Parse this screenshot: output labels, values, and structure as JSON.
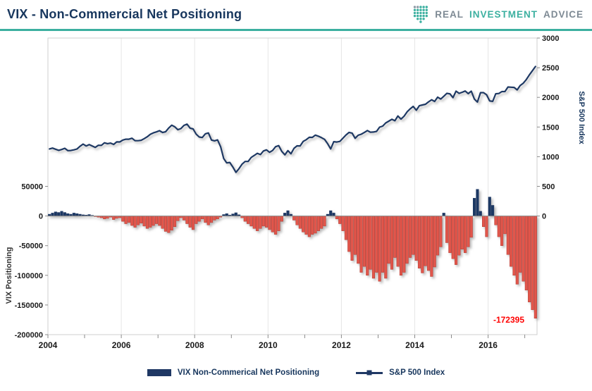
{
  "header": {
    "title": "VIX - Non-Commercial Net Positioning",
    "logo": {
      "icon": "dotted-shield-icon",
      "word1": "REAL",
      "word2": "INVESTMENT",
      "word3": "ADVICE"
    }
  },
  "colors": {
    "navy": "#1F3864",
    "teal": "#3CB0A0",
    "line": "#1F3864",
    "bar_negative": "#E2574C",
    "bar_negative_edge": "#B03A30",
    "bar_positive": "#1F3864",
    "annotation_red": "#FF0000",
    "axis_text": "#1a1a1a",
    "grid": "#E6E6E6",
    "plot_border": "#CFCFCF"
  },
  "annotation": {
    "label": "-172395",
    "value": -172395
  },
  "legend": [
    {
      "label": "VIX Non-Commerical Net Positioning",
      "swatch": "bar"
    },
    {
      "label": "S&P 500 Index",
      "swatch": "line"
    }
  ],
  "chart_data": {
    "type": "combo",
    "title": "VIX - Non-Commercial Net Positioning",
    "x_start": 2004,
    "x_months_per_point": 1,
    "x_ticks": [
      {
        "label": "2004",
        "value": 2004
      },
      {
        "label": "2006",
        "value": 2006
      },
      {
        "label": "2008",
        "value": 2008
      },
      {
        "label": "2010",
        "value": 2010
      },
      {
        "label": "2012",
        "value": 2012
      },
      {
        "label": "2014",
        "value": 2014
      },
      {
        "label": "2016",
        "value": 2016
      }
    ],
    "x_minor_tick_years": [
      2004,
      2005,
      2006,
      2007,
      2008,
      2009,
      2010,
      2011,
      2012,
      2013,
      2014,
      2015,
      2016,
      2017
    ],
    "left_axis": {
      "title": "VIX Positioning",
      "range": [
        -200000,
        300000
      ],
      "ticks": [
        {
          "label": "50000",
          "value": 50000
        },
        {
          "label": "0",
          "value": 0
        },
        {
          "label": "-50000",
          "value": -50000
        },
        {
          "label": "-100000",
          "value": -100000
        },
        {
          "label": "-150000",
          "value": -150000
        },
        {
          "label": "-200000",
          "value": -200000
        }
      ]
    },
    "right_axis": {
      "title": "S&P 500 Index",
      "range": [
        -2000,
        3000
      ],
      "left_units_per_right_unit": 100,
      "ticks": [
        {
          "label": "3000",
          "value": 3000
        },
        {
          "label": "2500",
          "value": 2500
        },
        {
          "label": "2000",
          "value": 2000
        },
        {
          "label": "1500",
          "value": 1500
        },
        {
          "label": "1000",
          "value": 1000
        },
        {
          "label": "500",
          "value": 500
        },
        {
          "label": "0",
          "value": 0
        }
      ]
    },
    "series": [
      {
        "name": "VIX Non-Commerical Net Positioning",
        "type": "bar",
        "axis": "left",
        "values": [
          3000,
          5000,
          7000,
          6000,
          8000,
          6000,
          4000,
          3000,
          5000,
          4000,
          3000,
          2000,
          1500,
          2500,
          1000,
          -1000,
          -2000,
          -3000,
          -5000,
          -4000,
          -2000,
          -6000,
          -4000,
          -3000,
          -9000,
          -13000,
          -11000,
          -16000,
          -19000,
          -15000,
          -12000,
          -17000,
          -21000,
          -19000,
          -16000,
          -13000,
          -16000,
          -21000,
          -26000,
          -28000,
          -24000,
          -18000,
          -8000,
          -3000,
          -7000,
          -13000,
          -19000,
          -23000,
          -13000,
          -9000,
          -5000,
          -11000,
          -15000,
          -11000,
          -7000,
          -5000,
          -2000,
          2500,
          4000,
          1500,
          3500,
          5500,
          2000,
          -3000,
          -9000,
          -13000,
          -17000,
          -21000,
          -25000,
          -21000,
          -17000,
          -19000,
          -23000,
          -27000,
          -31000,
          -25000,
          -9000,
          5000,
          9000,
          3000,
          -7000,
          -15000,
          -21000,
          -27000,
          -31000,
          -35000,
          -31000,
          -29000,
          -25000,
          -21000,
          -17000,
          3000,
          9000,
          5000,
          -5000,
          -13000,
          -25000,
          -40000,
          -60000,
          -75000,
          -65000,
          -80000,
          -95000,
          -85000,
          -100000,
          -90000,
          -105000,
          -95000,
          -110000,
          -95000,
          -105000,
          -80000,
          -90000,
          -70000,
          -85000,
          -100000,
          -95000,
          -80000,
          -70000,
          -65000,
          -75000,
          -88000,
          -96000,
          -84000,
          -92000,
          -102000,
          -86000,
          -66000,
          -52000,
          5000,
          -45000,
          -62000,
          -72000,
          -82000,
          -66000,
          -56000,
          -62000,
          -52000,
          -36000,
          30000,
          45000,
          8000,
          -18000,
          -35000,
          32000,
          18000,
          -15000,
          -35000,
          -50000,
          -30000,
          -65000,
          -85000,
          -100000,
          -115000,
          -95000,
          -110000,
          -125000,
          -145000,
          -158000,
          -172395
        ]
      },
      {
        "name": "S&P 500 Index",
        "type": "line",
        "axis": "right",
        "values": [
          1131,
          1145,
          1126,
          1107,
          1121,
          1141,
          1102,
          1104,
          1115,
          1130,
          1174,
          1212,
          1181,
          1204,
          1181,
          1157,
          1192,
          1191,
          1234,
          1220,
          1229,
          1207,
          1249,
          1248,
          1280,
          1294,
          1295,
          1311,
          1270,
          1270,
          1277,
          1304,
          1336,
          1378,
          1401,
          1418,
          1438,
          1407,
          1421,
          1482,
          1531,
          1503,
          1455,
          1474,
          1527,
          1549,
          1481,
          1468,
          1379,
          1331,
          1323,
          1386,
          1400,
          1280,
          1267,
          1283,
          1166,
          969,
          896,
          903,
          826,
          735,
          798,
          873,
          919,
          919,
          987,
          1021,
          1057,
          1036,
          1096,
          1115,
          1074,
          1104,
          1169,
          1187,
          1089,
          1031,
          1102,
          1049,
          1141,
          1183,
          1181,
          1258,
          1286,
          1327,
          1326,
          1364,
          1345,
          1321,
          1292,
          1219,
          1131,
          1253,
          1247,
          1258,
          1312,
          1366,
          1408,
          1398,
          1310,
          1362,
          1379,
          1407,
          1441,
          1412,
          1416,
          1426,
          1498,
          1515,
          1569,
          1598,
          1631,
          1606,
          1686,
          1633,
          1682,
          1757,
          1806,
          1848,
          1783,
          1859,
          1872,
          1884,
          1924,
          1960,
          1931,
          2003,
          1972,
          2018,
          2068,
          2059,
          1995,
          2105,
          2068,
          2086,
          2107,
          2063,
          2104,
          1972,
          1920,
          2079,
          2080,
          2044,
          1940,
          1932,
          2060,
          2065,
          2097,
          2099,
          2174,
          2171,
          2168,
          2126,
          2199,
          2239,
          2300,
          2380,
          2450,
          2520
        ]
      }
    ]
  }
}
